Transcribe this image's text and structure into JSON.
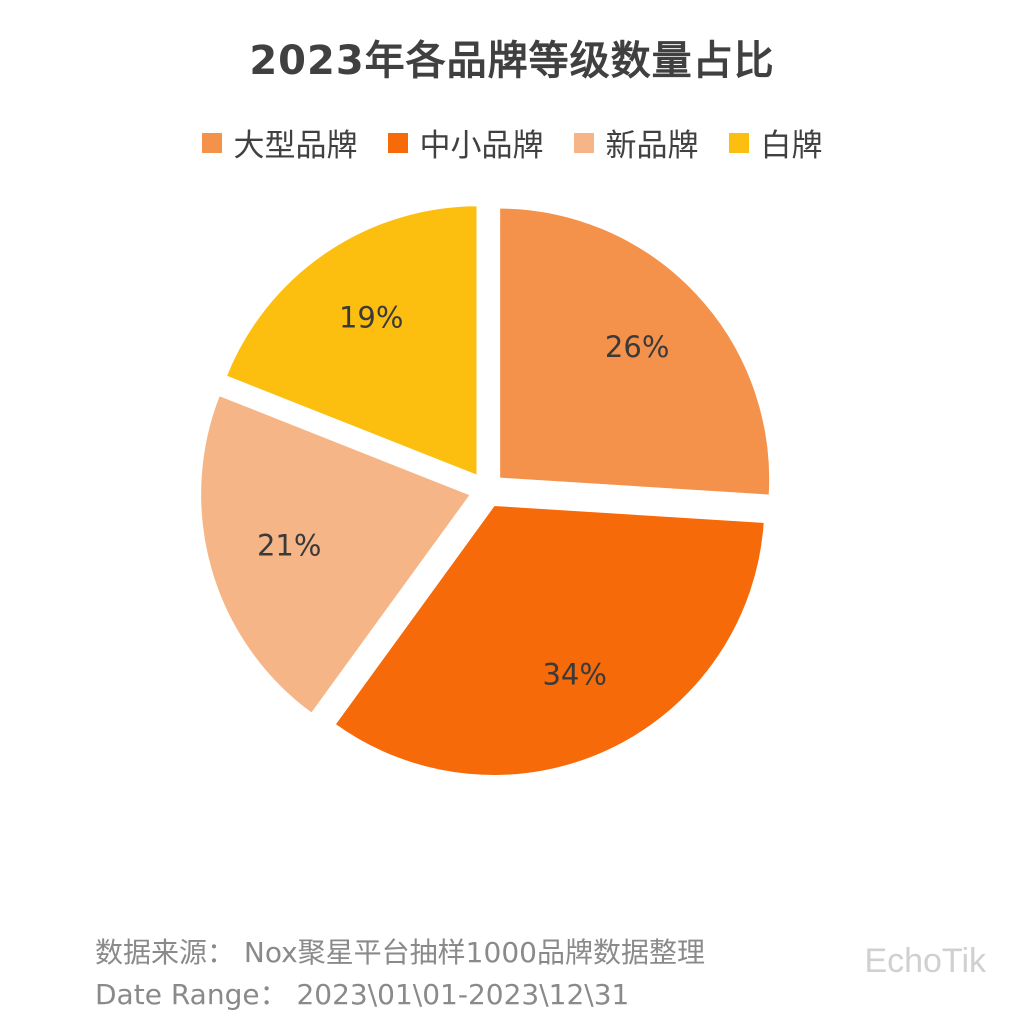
{
  "chart_data": {
    "type": "pie",
    "title": "2023年各品牌等级数量占比",
    "legend_position": "top",
    "categories": [
      "大型品牌",
      "中小品牌",
      "新品牌",
      "白牌"
    ],
    "values": [
      26,
      34,
      21,
      19
    ],
    "labels": [
      "26%",
      "34%",
      "21%",
      "19%"
    ],
    "colors": [
      "#F4914A",
      "#F66A0A",
      "#F5B587",
      "#FDBF0F"
    ],
    "exploded": true
  },
  "footer": {
    "source": "数据来源：  Nox聚星平台抽样1000品牌数据整理",
    "date_range": "Date Range：  2023\\01\\01-2023\\12\\31"
  },
  "watermark": "EchoTik"
}
